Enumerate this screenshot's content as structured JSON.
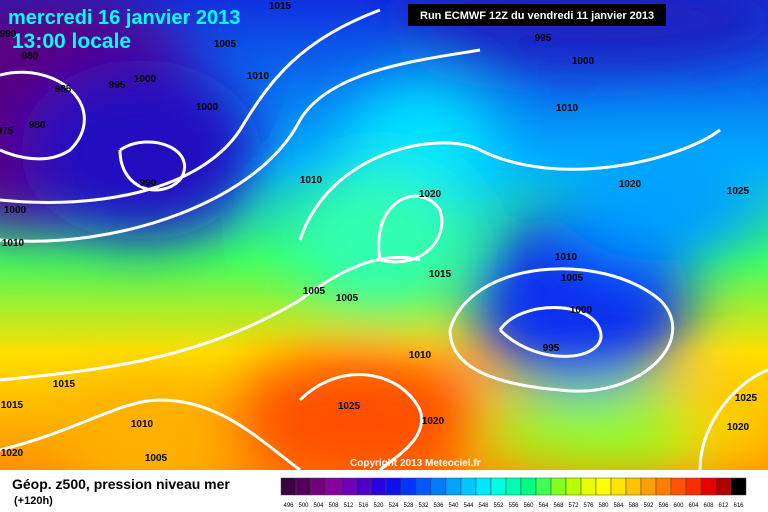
{
  "header": {
    "date": "mercredi 16 janvier 2013",
    "time": "13:00 locale",
    "run": "Run ECMWF 12Z du vendredi 11 janvier 2013"
  },
  "footer": {
    "title": "Géop. z500, pression niveau mer",
    "lead": "(+120h)",
    "copyright": "Copyright 2013 Meteociel.fr"
  },
  "legend": {
    "labels": [
      "496",
      "500",
      "504",
      "508",
      "512",
      "516",
      "520",
      "524",
      "528",
      "532",
      "536",
      "540",
      "544",
      "548",
      "552",
      "556",
      "560",
      "564",
      "568",
      "572",
      "576",
      "580",
      "584",
      "588",
      "592",
      "596",
      "600",
      "604",
      "608",
      "612",
      "616"
    ],
    "colors": [
      "#3a0040",
      "#55005f",
      "#72007e",
      "#8a009c",
      "#7000b4",
      "#4e00c8",
      "#2c00dc",
      "#0a10f0",
      "#0034ff",
      "#0058ff",
      "#007cff",
      "#00a4ff",
      "#00c8ff",
      "#00e8ff",
      "#00ffe0",
      "#00ffb0",
      "#00ff80",
      "#40ff50",
      "#80ff20",
      "#b8ff00",
      "#e8ff00",
      "#ffff00",
      "#ffe400",
      "#ffc400",
      "#ffa000",
      "#ff7c00",
      "#ff5400",
      "#ff2c00",
      "#e60000",
      "#b00000",
      "#000000"
    ]
  },
  "isobar_labels": [
    "1015",
    "990",
    "1005",
    "995",
    "1000",
    "980",
    "985",
    "995",
    "1000",
    "1010",
    "1000",
    "1010",
    "975",
    "980",
    "990",
    "1010",
    "1020",
    "1020",
    "1025",
    "1000",
    "1010",
    "1010",
    "1005",
    "1015",
    "1005",
    "1005",
    "1000",
    "995",
    "1010",
    "1015",
    "1025",
    "1015",
    "1010",
    "1020",
    "1025",
    "1020",
    "1020",
    "1005"
  ]
}
